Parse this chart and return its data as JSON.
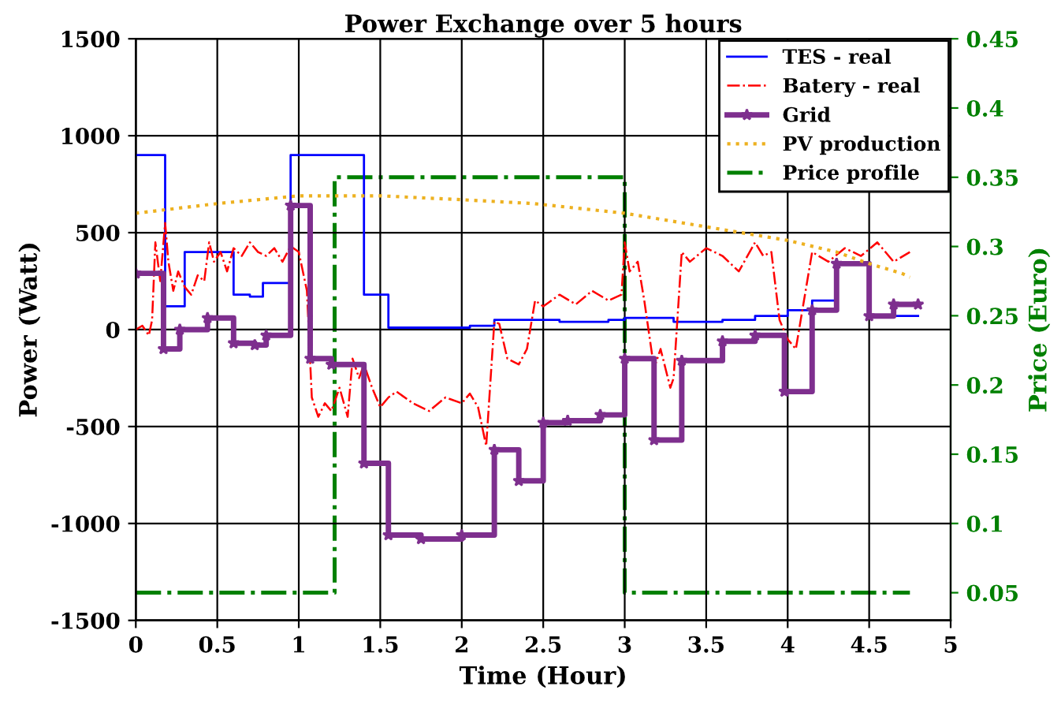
{
  "chart_data": {
    "type": "step",
    "title": "Power Exchange over 5 hours",
    "xlabel": "Time (Hour)",
    "ylabel": "Power (Watt)",
    "y2label": "Price (Euro)",
    "xlim": [
      0,
      5
    ],
    "xticks": [
      0,
      0.5,
      1,
      1.5,
      2,
      2.5,
      3,
      3.5,
      4,
      4.5,
      5
    ],
    "ylim": [
      -1500,
      1500
    ],
    "yticks": [
      -1500,
      -1000,
      -500,
      0,
      500,
      1000,
      1500
    ],
    "y2lim": [
      0.03,
      0.45
    ],
    "y2ticks": [
      0.05,
      0.1,
      0.15,
      0.2,
      0.25,
      0.3,
      0.35,
      0.4,
      0.45
    ],
    "grid": true,
    "legend": "top right",
    "series": [
      {
        "name": "TES - real",
        "color": "#0000ff",
        "line_style": "solid",
        "x": [
          0,
          0.18,
          0.3,
          0.6,
          0.7,
          0.78,
          0.95,
          1.4,
          1.55,
          2.05,
          2.2,
          2.6,
          2.9,
          3.0,
          3.3,
          3.6,
          3.8,
          4.0,
          4.15,
          4.3,
          4.5,
          4.8
        ],
        "values": [
          900,
          120,
          400,
          180,
          170,
          240,
          900,
          180,
          10,
          20,
          50,
          40,
          50,
          60,
          40,
          50,
          70,
          100,
          150,
          340,
          70,
          70
        ]
      },
      {
        "name": "Batery - real",
        "type": "line",
        "color": "#ff0000",
        "line_style": "dashdot",
        "x": [
          0,
          0.04,
          0.08,
          0.1,
          0.12,
          0.15,
          0.18,
          0.2,
          0.23,
          0.26,
          0.3,
          0.34,
          0.38,
          0.42,
          0.45,
          0.48,
          0.52,
          0.56,
          0.6,
          0.65,
          0.7,
          0.75,
          0.8,
          0.85,
          0.9,
          0.95,
          1.0,
          1.05,
          1.08,
          1.12,
          1.16,
          1.2,
          1.25,
          1.3,
          1.33,
          1.37,
          1.4,
          1.45,
          1.5,
          1.55,
          1.6,
          1.7,
          1.8,
          1.9,
          2.0,
          2.05,
          2.1,
          2.15,
          2.2,
          2.23,
          2.28,
          2.35,
          2.4,
          2.45,
          2.5,
          2.6,
          2.7,
          2.8,
          2.9,
          2.98,
          3.0,
          3.03,
          3.08,
          3.12,
          3.18,
          3.22,
          3.28,
          3.3,
          3.35,
          3.4,
          3.5,
          3.6,
          3.7,
          3.8,
          3.85,
          3.9,
          3.95,
          4.0,
          4.05,
          4.1,
          4.15,
          4.25,
          4.35,
          4.45,
          4.55,
          4.65,
          4.75
        ],
        "values": [
          0,
          20,
          -30,
          50,
          450,
          250,
          550,
          350,
          200,
          300,
          220,
          180,
          280,
          250,
          450,
          350,
          400,
          300,
          420,
          380,
          450,
          400,
          380,
          420,
          350,
          430,
          400,
          200,
          -350,
          -450,
          -380,
          -420,
          -300,
          -450,
          -150,
          -250,
          -180,
          -300,
          -400,
          -350,
          -320,
          -380,
          -420,
          -350,
          -380,
          -330,
          -400,
          -600,
          40,
          30,
          -150,
          -180,
          -100,
          150,
          120,
          180,
          130,
          200,
          150,
          180,
          450,
          300,
          350,
          150,
          -200,
          -100,
          -300,
          -250,
          400,
          350,
          420,
          380,
          300,
          450,
          380,
          400,
          50,
          -50,
          -100,
          150,
          400,
          350,
          420,
          380,
          450,
          350,
          400
        ]
      },
      {
        "name": "Grid",
        "color": "#7e2f8e",
        "line_style": "solid",
        "marker": "star",
        "x": [
          0,
          0.17,
          0.27,
          0.44,
          0.6,
          0.73,
          0.8,
          0.95,
          1.07,
          1.2,
          1.4,
          1.55,
          1.75,
          2.0,
          2.2,
          2.35,
          2.5,
          2.65,
          2.85,
          3.0,
          3.18,
          3.35,
          3.6,
          3.8,
          3.98,
          4.15,
          4.3,
          4.5,
          4.65,
          4.8
        ],
        "values": [
          290,
          -100,
          0,
          60,
          -70,
          -80,
          -30,
          640,
          -150,
          -180,
          -690,
          -1060,
          -1080,
          -1060,
          -620,
          -780,
          -480,
          -470,
          -440,
          -150,
          -570,
          -160,
          -60,
          -30,
          -320,
          100,
          340,
          70,
          130,
          130
        ]
      },
      {
        "name": "PV production",
        "type": "line",
        "color": "#edb120",
        "line_style": "dotted",
        "x": [
          0,
          0.5,
          1.0,
          1.5,
          2.0,
          2.44,
          3.0,
          3.5,
          4.0,
          4.3,
          4.5,
          4.7,
          4.75
        ],
        "values": [
          600,
          650,
          690,
          690,
          670,
          650,
          600,
          530,
          460,
          400,
          340,
          290,
          270
        ]
      },
      {
        "name": "Price profile",
        "axis": "y2",
        "color": "#008000",
        "line_style": "dashdot",
        "x": [
          0,
          1.22,
          3.0,
          4.75
        ],
        "values": [
          0.05,
          0.35,
          0.05,
          0.05
        ]
      }
    ]
  }
}
